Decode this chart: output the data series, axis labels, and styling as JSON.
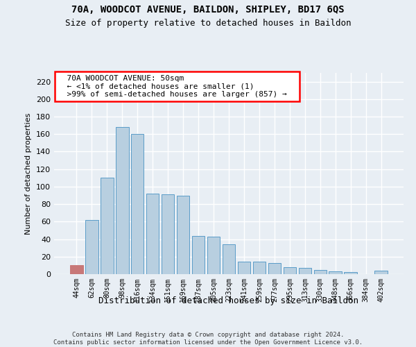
{
  "title1": "70A, WOODCOT AVENUE, BAILDON, SHIPLEY, BD17 6QS",
  "title2": "Size of property relative to detached houses in Baildon",
  "xlabel": "Distribution of detached houses by size in Baildon",
  "ylabel": "Number of detached properties",
  "footer1": "Contains HM Land Registry data © Crown copyright and database right 2024.",
  "footer2": "Contains public sector information licensed under the Open Government Licence v3.0.",
  "annotation_line1": "  70A WOODCOT AVENUE: 50sqm  ",
  "annotation_line2": "  ← <1% of detached houses are smaller (1)  ",
  "annotation_line3": "  >99% of semi-detached houses are larger (857) →  ",
  "bar_color": "#b8cfe0",
  "bar_edge_color": "#5a9cc8",
  "highlight_bar_color": "#c87878",
  "highlight_edge_color": "#c87878",
  "categories": [
    "44sqm",
    "62sqm",
    "80sqm",
    "98sqm",
    "116sqm",
    "134sqm",
    "151sqm",
    "169sqm",
    "187sqm",
    "205sqm",
    "223sqm",
    "241sqm",
    "259sqm",
    "277sqm",
    "295sqm",
    "313sqm",
    "330sqm",
    "348sqm",
    "366sqm",
    "384sqm",
    "402sqm"
  ],
  "values": [
    10,
    62,
    110,
    168,
    160,
    92,
    91,
    90,
    44,
    43,
    34,
    14,
    14,
    13,
    8,
    7,
    5,
    3,
    2,
    0,
    4
  ],
  "highlight_index": 0,
  "ylim": [
    0,
    230
  ],
  "yticks": [
    0,
    20,
    40,
    60,
    80,
    100,
    120,
    140,
    160,
    180,
    200,
    220
  ],
  "bg_color": "#e8eef4",
  "title1_fontsize": 10,
  "title2_fontsize": 9,
  "xlabel_fontsize": 9,
  "ylabel_fontsize": 8,
  "tick_fontsize": 8,
  "xtick_fontsize": 7,
  "footer_fontsize": 6.5,
  "ann_fontsize": 8
}
